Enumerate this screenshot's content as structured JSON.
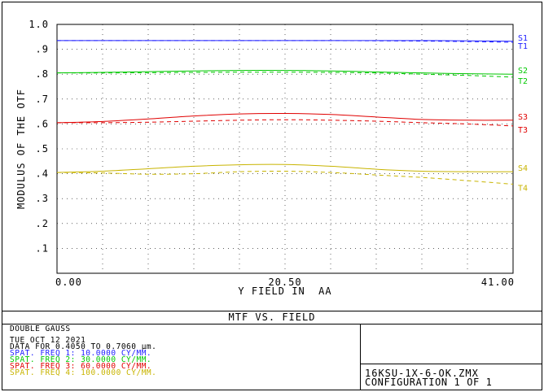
{
  "chart_data": {
    "type": "line",
    "title": "MTF VS. FIELD",
    "xlabel": "Y FIELD IN  AA",
    "ylabel": "MODULUS OF THE OTF",
    "xlim": [
      0,
      41
    ],
    "ylim": [
      0,
      1.0
    ],
    "x_ticks": [
      0,
      20.5,
      41
    ],
    "x_tick_labels": [
      "0.00",
      "20.50",
      "41.00"
    ],
    "y_ticks": [
      0.1,
      0.2,
      0.3,
      0.4,
      0.5,
      0.6,
      0.7,
      0.8,
      0.9,
      1.0
    ],
    "y_tick_labels": [
      ".1",
      ".2",
      ".3",
      ".4",
      ".5",
      ".6",
      ".7",
      ".8",
      ".9",
      "1.0"
    ],
    "grid": true,
    "x": [
      0,
      4.1,
      8.2,
      12.3,
      16.4,
      20.5,
      24.6,
      28.7,
      32.8,
      36.9,
      41
    ],
    "series": [
      {
        "name": "S1",
        "style": "solid",
        "color": "#2020ff",
        "values": [
          0.935,
          0.935,
          0.935,
          0.935,
          0.935,
          0.935,
          0.935,
          0.935,
          0.935,
          0.934,
          0.932
        ]
      },
      {
        "name": "T1",
        "style": "dashed",
        "color": "#2020ff",
        "values": [
          0.935,
          0.935,
          0.935,
          0.935,
          0.935,
          0.935,
          0.935,
          0.934,
          0.933,
          0.931,
          0.928
        ]
      },
      {
        "name": "S2",
        "style": "solid",
        "color": "#00c800",
        "values": [
          0.805,
          0.807,
          0.81,
          0.813,
          0.815,
          0.815,
          0.813,
          0.809,
          0.805,
          0.802,
          0.8
        ]
      },
      {
        "name": "T2",
        "style": "dashed",
        "color": "#00c800",
        "values": [
          0.805,
          0.805,
          0.806,
          0.807,
          0.808,
          0.808,
          0.807,
          0.805,
          0.8,
          0.795,
          0.788
        ]
      },
      {
        "name": "S3",
        "style": "solid",
        "color": "#e00000",
        "values": [
          0.605,
          0.61,
          0.62,
          0.632,
          0.64,
          0.642,
          0.638,
          0.628,
          0.618,
          0.615,
          0.615
        ]
      },
      {
        "name": "T3",
        "style": "dashed",
        "color": "#e00000",
        "values": [
          0.605,
          0.605,
          0.607,
          0.611,
          0.615,
          0.617,
          0.615,
          0.611,
          0.605,
          0.6,
          0.592
        ]
      },
      {
        "name": "S4",
        "style": "solid",
        "color": "#c8b400",
        "values": [
          0.405,
          0.41,
          0.42,
          0.43,
          0.436,
          0.437,
          0.43,
          0.418,
          0.41,
          0.408,
          0.408
        ]
      },
      {
        "name": "T4",
        "style": "dashed",
        "color": "#c8b400",
        "values": [
          0.405,
          0.403,
          0.398,
          0.4,
          0.408,
          0.41,
          0.405,
          0.395,
          0.385,
          0.372,
          0.358
        ]
      }
    ]
  },
  "info": {
    "lens_title": "DOUBLE GAUSS",
    "date": "TUE OCT 12 2021",
    "wavelength_line": "DATA FOR 0.4050 TO 0.7060 µm.",
    "freq_lines": [
      {
        "label": "SPAT. FREQ 1:  10.0000 CY/MM.",
        "color": "#2020ff"
      },
      {
        "label": "SPAT. FREQ 2:  30.0000 CY/MM.",
        "color": "#00c800"
      },
      {
        "label": "SPAT. FREQ 3:  60.0000 CY/MM.",
        "color": "#e00000"
      },
      {
        "label": "SPAT. FREQ 4: 100.0000 CY/MM.",
        "color": "#c8b400"
      }
    ],
    "file_name": "16KSU-1X-6-OK.ZMX",
    "configuration": "CONFIGURATION 1 OF 1"
  }
}
